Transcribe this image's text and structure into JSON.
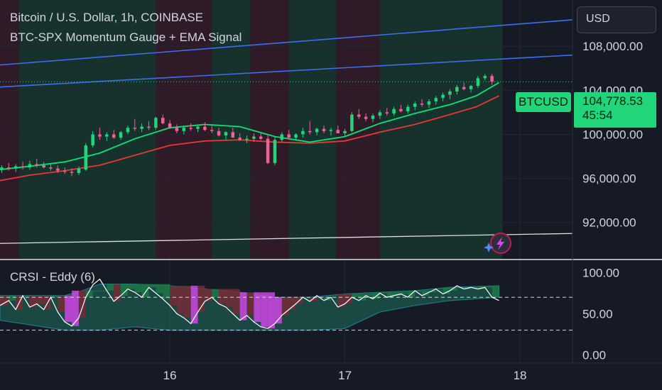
{
  "header": {
    "symbol_title": "Bitcoin / U.S. Dollar, 1h, COINBASE",
    "indicator_title": "BTC-SPX Momentum Gauge + EMA Signal"
  },
  "currency_button": {
    "label": "USD"
  },
  "price_badge": {
    "symbol": "BTCUSD",
    "price": "104,778.53",
    "countdown": "45:54"
  },
  "lower_panel": {
    "title": "CRSI - Eddy (6)"
  },
  "colors": {
    "background": "#161a25",
    "bull": "#22d47a",
    "bear": "#f06292",
    "ema_fast": "#00e676",
    "ema_slow": "#e53935",
    "channel": "#3d6df2",
    "support": "#e0e0e0",
    "band_green": "#1b5e3a",
    "band_red": "#5e1f2a",
    "crsi_fill": "#26a69a"
  },
  "chart_data": [
    {
      "type": "candlestick",
      "title": "Bitcoin / U.S. Dollar, 1h, COINBASE",
      "y_ticks": [
        "108,000.00",
        "104,000.00",
        "100,000.00",
        "96,000.00",
        "92,000.00"
      ],
      "y_tick_values": [
        108000,
        104000,
        100000,
        96000,
        92000
      ],
      "x_ticks": [
        "16",
        "17",
        "18"
      ],
      "x_tick_values": [
        16,
        17,
        18
      ],
      "xlim": [
        15.03,
        18.3
      ],
      "ylim": [
        88700,
        112200
      ],
      "last_price": 104778.53,
      "series_ema_fast": {
        "x": [
          15.03,
          15.2,
          15.4,
          15.6,
          15.8,
          16.0,
          16.2,
          16.4,
          16.6,
          16.8,
          17.0,
          17.2,
          17.4,
          17.6,
          17.75,
          17.88
        ],
        "y": [
          96800,
          97100,
          97500,
          98300,
          99600,
          100600,
          100900,
          100700,
          99800,
          99300,
          99800,
          101000,
          101900,
          102700,
          103500,
          104700
        ]
      },
      "series_ema_slow": {
        "x": [
          15.03,
          15.2,
          15.4,
          15.6,
          15.8,
          16.0,
          16.2,
          16.4,
          16.6,
          16.8,
          17.0,
          17.2,
          17.4,
          17.6,
          17.75,
          17.88
        ],
        "y": [
          95800,
          96300,
          96700,
          97200,
          98100,
          99000,
          99400,
          99500,
          99300,
          99200,
          99400,
          100200,
          100900,
          101800,
          102500,
          103500
        ]
      },
      "channel_upper": {
        "x": [
          15.03,
          18.3
        ],
        "y": [
          106300,
          110400
        ]
      },
      "channel_lower": {
        "x": [
          15.03,
          18.3
        ],
        "y": [
          104300,
          107200
        ]
      },
      "support_line": {
        "x": [
          15.03,
          18.3
        ],
        "y": [
          90100,
          91000
        ]
      },
      "bands": [
        {
          "from": 15.03,
          "to": 15.14,
          "state": "bear"
        },
        {
          "from": 15.14,
          "to": 15.92,
          "state": "bull"
        },
        {
          "from": 15.92,
          "to": 16.24,
          "state": "bear"
        },
        {
          "from": 16.24,
          "to": 16.46,
          "state": "bull"
        },
        {
          "from": 16.46,
          "to": 16.68,
          "state": "bear"
        },
        {
          "from": 16.68,
          "to": 16.95,
          "state": "bull"
        },
        {
          "from": 16.95,
          "to": 17.2,
          "state": "bear"
        },
        {
          "from": 17.2,
          "to": 17.9,
          "state": "bull"
        }
      ],
      "candles": [
        [
          15.04,
          96800,
          97200,
          96500,
          97000
        ],
        [
          15.08,
          97000,
          97400,
          96700,
          96900
        ],
        [
          15.12,
          96900,
          97300,
          96600,
          97100
        ],
        [
          15.16,
          97100,
          97500,
          96800,
          97000
        ],
        [
          15.2,
          97000,
          97600,
          96800,
          97300
        ],
        [
          15.24,
          97300,
          97800,
          97000,
          97200
        ],
        [
          15.28,
          97200,
          97500,
          96900,
          97000
        ],
        [
          15.32,
          97000,
          97300,
          96700,
          96900
        ],
        [
          15.36,
          96900,
          97200,
          96500,
          96700
        ],
        [
          15.4,
          96700,
          97000,
          96400,
          96600
        ],
        [
          15.44,
          96600,
          96900,
          96200,
          96500
        ],
        [
          15.48,
          96500,
          97100,
          96300,
          96900
        ],
        [
          15.52,
          96800,
          99200,
          96700,
          99000
        ],
        [
          15.56,
          99000,
          100300,
          98800,
          100000
        ],
        [
          15.6,
          100000,
          100600,
          99500,
          99800
        ],
        [
          15.64,
          99800,
          100200,
          99400,
          100000
        ],
        [
          15.68,
          100000,
          100400,
          99600,
          99700
        ],
        [
          15.72,
          99700,
          100300,
          99500,
          100200
        ],
        [
          15.76,
          100200,
          100800,
          100000,
          100600
        ],
        [
          15.8,
          100600,
          101400,
          100300,
          100500
        ],
        [
          15.84,
          100500,
          101000,
          100200,
          100700
        ],
        [
          15.88,
          100700,
          101200,
          100400,
          100600
        ],
        [
          15.92,
          100600,
          101600,
          100400,
          101500
        ],
        [
          15.96,
          101500,
          101800,
          100900,
          101000
        ],
        [
          16.0,
          101000,
          101300,
          100500,
          100600
        ],
        [
          16.04,
          100600,
          100900,
          100100,
          100300
        ],
        [
          16.08,
          100300,
          100800,
          100000,
          100600
        ],
        [
          16.12,
          100600,
          101000,
          100300,
          100500
        ],
        [
          16.16,
          100500,
          100900,
          100200,
          100700
        ],
        [
          16.2,
          100700,
          101100,
          100300,
          100400
        ],
        [
          16.24,
          100400,
          100800,
          100100,
          100300
        ],
        [
          16.28,
          100300,
          100600,
          99800,
          99900
        ],
        [
          16.32,
          99900,
          100300,
          99500,
          100200
        ],
        [
          16.36,
          100200,
          100600,
          99700,
          99700
        ],
        [
          16.4,
          99700,
          100100,
          99400,
          99500
        ],
        [
          16.44,
          99500,
          99900,
          99200,
          99600
        ],
        [
          16.48,
          99600,
          100100,
          99300,
          99800
        ],
        [
          16.52,
          99800,
          100200,
          99500,
          99600
        ],
        [
          16.56,
          99600,
          99900,
          97300,
          97400
        ],
        [
          16.6,
          97400,
          99800,
          97200,
          99500
        ],
        [
          16.64,
          99500,
          100200,
          99300,
          100000
        ],
        [
          16.68,
          100000,
          100400,
          99500,
          99700
        ],
        [
          16.72,
          99700,
          100100,
          99400,
          100000
        ],
        [
          16.76,
          100000,
          100600,
          99700,
          100300
        ],
        [
          16.8,
          100300,
          101200,
          100000,
          100200
        ],
        [
          16.84,
          100200,
          100600,
          99900,
          100500
        ],
        [
          16.88,
          100500,
          100800,
          100100,
          100300
        ],
        [
          16.92,
          100300,
          100600,
          99900,
          100400
        ],
        [
          16.96,
          100400,
          100800,
          100100,
          100100
        ],
        [
          17.0,
          100100,
          100500,
          99800,
          100300
        ],
        [
          17.04,
          100300,
          102000,
          100200,
          101800
        ],
        [
          17.08,
          101800,
          102300,
          101400,
          101600
        ],
        [
          17.12,
          101600,
          101900,
          101200,
          101400
        ],
        [
          17.16,
          101400,
          101900,
          101100,
          101700
        ],
        [
          17.2,
          101700,
          102200,
          101400,
          102000
        ],
        [
          17.24,
          102000,
          102400,
          101700,
          101900
        ],
        [
          17.28,
          101900,
          102500,
          101700,
          102300
        ],
        [
          17.32,
          102300,
          102700,
          102000,
          102100
        ],
        [
          17.36,
          102100,
          102700,
          101900,
          102500
        ],
        [
          17.4,
          102500,
          103000,
          102200,
          102800
        ],
        [
          17.44,
          102800,
          103200,
          102500,
          102700
        ],
        [
          17.48,
          102700,
          103200,
          102400,
          103000
        ],
        [
          17.52,
          103000,
          103500,
          102700,
          103300
        ],
        [
          17.56,
          103300,
          103800,
          103000,
          103600
        ],
        [
          17.6,
          103600,
          104100,
          103200,
          103900
        ],
        [
          17.64,
          103900,
          104500,
          103600,
          104300
        ],
        [
          17.68,
          104300,
          104700,
          104000,
          104100
        ],
        [
          17.72,
          104100,
          104500,
          103800,
          104400
        ],
        [
          17.76,
          104400,
          105300,
          104200,
          105100
        ],
        [
          17.8,
          105100,
          105500,
          104900,
          105300
        ],
        [
          17.84,
          105300,
          105500,
          104500,
          104778.53
        ]
      ]
    },
    {
      "type": "area",
      "title": "CRSI - Eddy (6)",
      "y_ticks": [
        "100.00",
        "50.00",
        "0.00"
      ],
      "y_tick_values": [
        100,
        50,
        0
      ],
      "xlim": [
        15.03,
        18.3
      ],
      "ylim": [
        -10,
        115
      ],
      "levels": [
        70,
        30
      ],
      "crsi": {
        "x": [
          15.03,
          15.08,
          15.12,
          15.16,
          15.2,
          15.24,
          15.28,
          15.32,
          15.36,
          15.4,
          15.44,
          15.48,
          15.52,
          15.56,
          15.6,
          15.64,
          15.68,
          15.72,
          15.76,
          15.8,
          15.84,
          15.88,
          15.92,
          15.96,
          16.0,
          16.04,
          16.08,
          16.12,
          16.16,
          16.2,
          16.24,
          16.28,
          16.32,
          16.36,
          16.4,
          16.44,
          16.48,
          16.52,
          16.56,
          16.6,
          16.64,
          16.68,
          16.72,
          16.76,
          16.8,
          16.84,
          16.88,
          16.92,
          16.96,
          17.0,
          17.04,
          17.08,
          17.12,
          17.16,
          17.2,
          17.24,
          17.28,
          17.32,
          17.36,
          17.4,
          17.44,
          17.48,
          17.52,
          17.56,
          17.6,
          17.64,
          17.68,
          17.72,
          17.76,
          17.8,
          17.84,
          17.88
        ],
        "y": [
          60,
          66,
          55,
          72,
          58,
          62,
          55,
          70,
          52,
          40,
          35,
          45,
          70,
          85,
          92,
          78,
          65,
          72,
          80,
          76,
          70,
          82,
          75,
          68,
          60,
          50,
          45,
          38,
          52,
          65,
          70,
          62,
          58,
          50,
          42,
          48,
          40,
          34,
          32,
          38,
          48,
          55,
          62,
          70,
          65,
          72,
          66,
          70,
          58,
          62,
          70,
          66,
          72,
          68,
          75,
          70,
          72,
          74,
          70,
          78,
          72,
          76,
          80,
          74,
          78,
          84,
          80,
          82,
          80,
          82,
          70,
          66
        ]
      },
      "crsi_band_upper": {
        "x": [
          15.03,
          15.4,
          15.5,
          15.6,
          15.8,
          16.0,
          16.2,
          16.4,
          16.6,
          16.8,
          17.0,
          17.2,
          17.4,
          17.6,
          17.88
        ],
        "y": [
          72,
          72,
          78,
          86,
          86,
          84,
          80,
          76,
          70,
          70,
          74,
          76,
          78,
          82,
          84
        ]
      },
      "crsi_band_lower": {
        "x": [
          15.03,
          15.4,
          15.5,
          15.6,
          15.8,
          16.0,
          16.2,
          16.4,
          16.6,
          16.8,
          17.0,
          17.2,
          17.4,
          17.6,
          17.88
        ],
        "y": [
          42,
          30,
          30,
          30,
          34,
          30,
          30,
          30,
          30,
          30,
          32,
          52,
          60,
          66,
          70
        ]
      }
    }
  ]
}
